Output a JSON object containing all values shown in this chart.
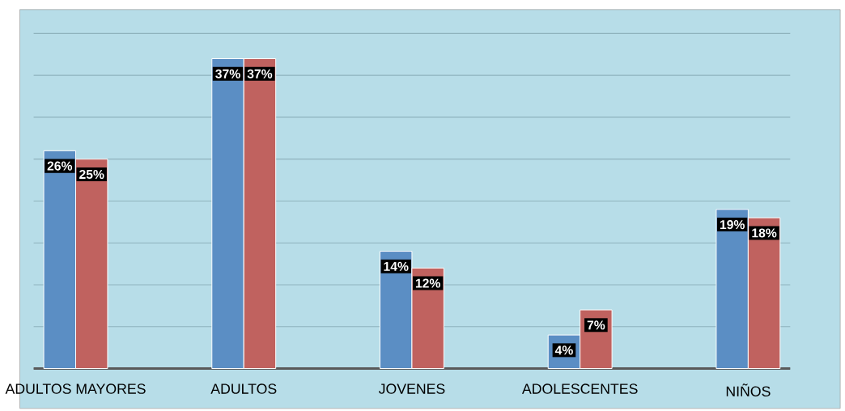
{
  "chart_data": {
    "type": "bar",
    "categories": [
      "ADULTOS MAYORES",
      "ADULTOS",
      "JOVENES",
      "ADOLESCENTES",
      "NIÑOS"
    ],
    "series": [
      {
        "color": "#5b8ec4",
        "values": [
          26,
          37,
          14,
          4,
          19
        ],
        "value_labels": [
          "26%",
          "37%",
          "14%",
          "4%",
          "19%"
        ]
      },
      {
        "color": "#c0625f",
        "values": [
          25,
          37,
          12,
          7,
          18
        ],
        "value_labels": [
          "25%",
          "37%",
          "12%",
          "7%",
          "18%"
        ]
      }
    ],
    "ylim": [
      0,
      40
    ],
    "yticks": [
      {
        "value": 0,
        "label": null
      },
      {
        "value": 5,
        "label": null
      },
      {
        "value": 10,
        "label": null
      },
      {
        "value": 15,
        "label": null
      },
      {
        "value": 20,
        "label": null
      },
      {
        "value": 25,
        "label": null
      },
      {
        "value": 30,
        "label": null
      },
      {
        "value": 35,
        "label": null
      },
      {
        "value": 40,
        "label": null
      }
    ],
    "grid": "y",
    "tick_labels": "x"
  }
}
